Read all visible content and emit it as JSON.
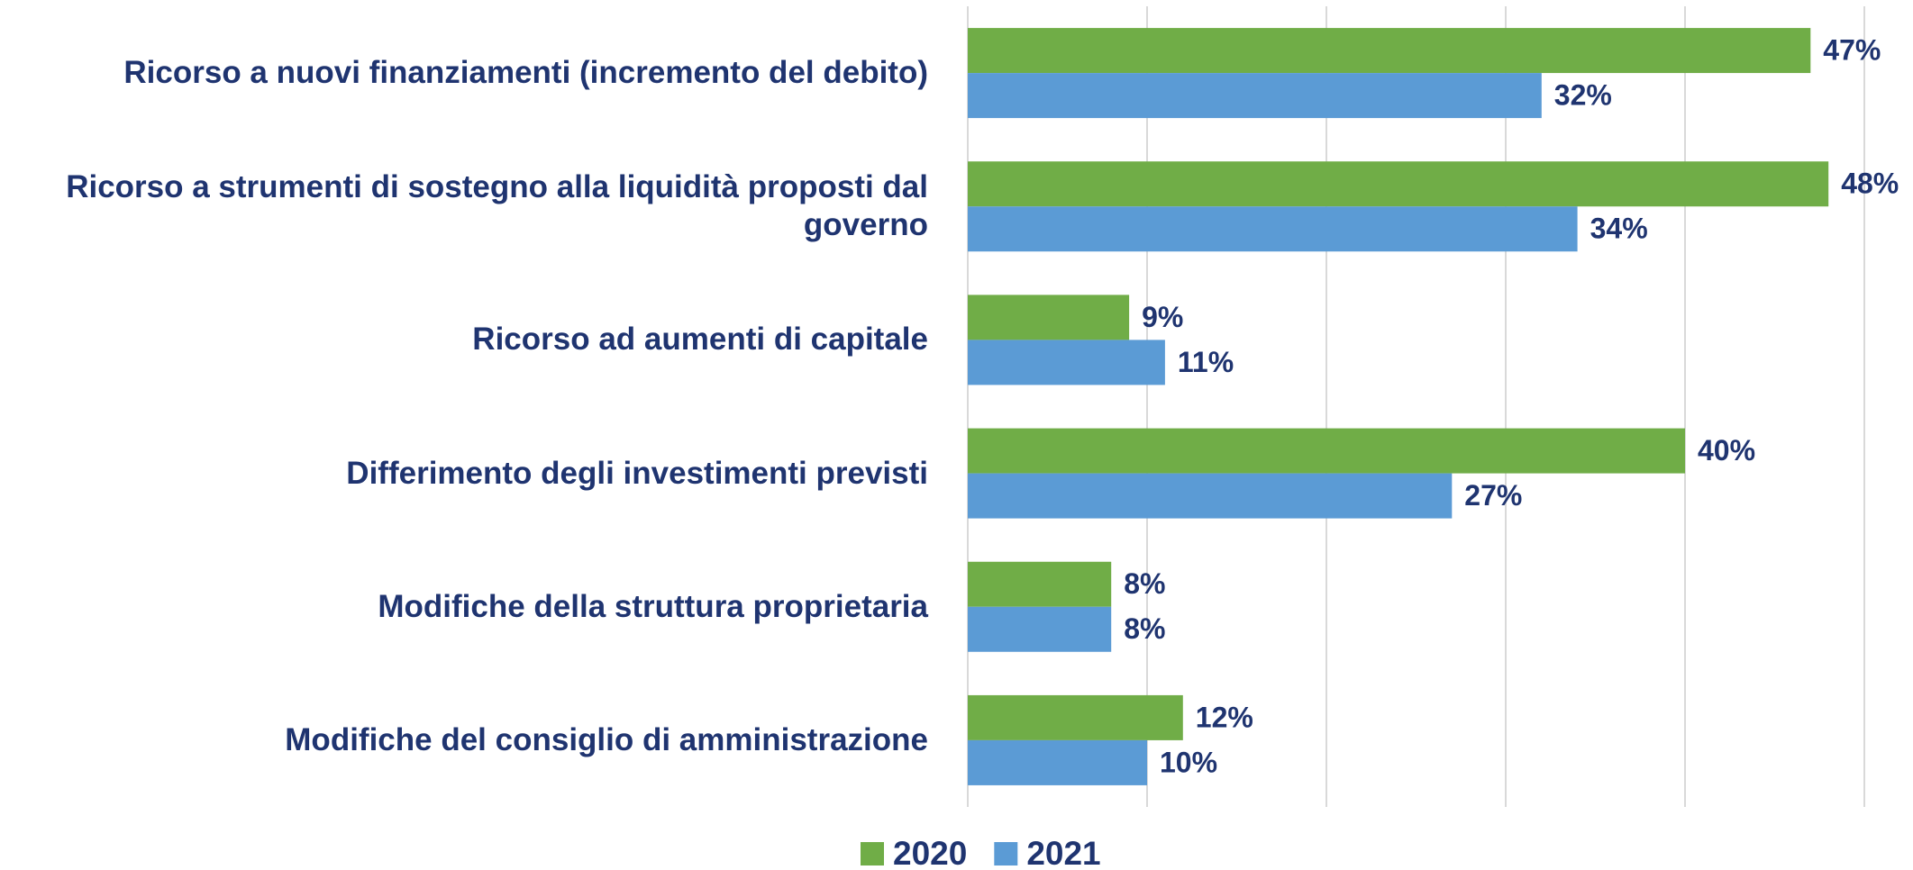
{
  "chart_data": {
    "type": "hbar",
    "categories": [
      "Ricorso a nuovi finanziamenti (incremento del debito)",
      "Ricorso a strumenti di sostegno alla liquidità proposti dal governo",
      "Ricorso ad aumenti di capitale",
      "Differimento degli investimenti previsti",
      "Modifiche della struttura proprietaria",
      "Modifiche del consiglio di amministrazione"
    ],
    "series": [
      {
        "name": "2020",
        "color": "#70ad47",
        "values": [
          47,
          48,
          9,
          40,
          8,
          12
        ],
        "value_labels": [
          "47%",
          "48%",
          "9%",
          "40%",
          "8%",
          "12%"
        ]
      },
      {
        "name": "2021",
        "color": "#5b9bd5",
        "values": [
          32,
          34,
          11,
          27,
          8,
          10
        ],
        "value_labels": [
          "32%",
          "34%",
          "11%",
          "27%",
          "8%",
          "10%"
        ]
      }
    ],
    "xlim": [
      0,
      50
    ],
    "xticks": [
      0,
      10,
      20,
      30,
      40,
      50
    ],
    "grid": true,
    "legend": "bottom"
  }
}
